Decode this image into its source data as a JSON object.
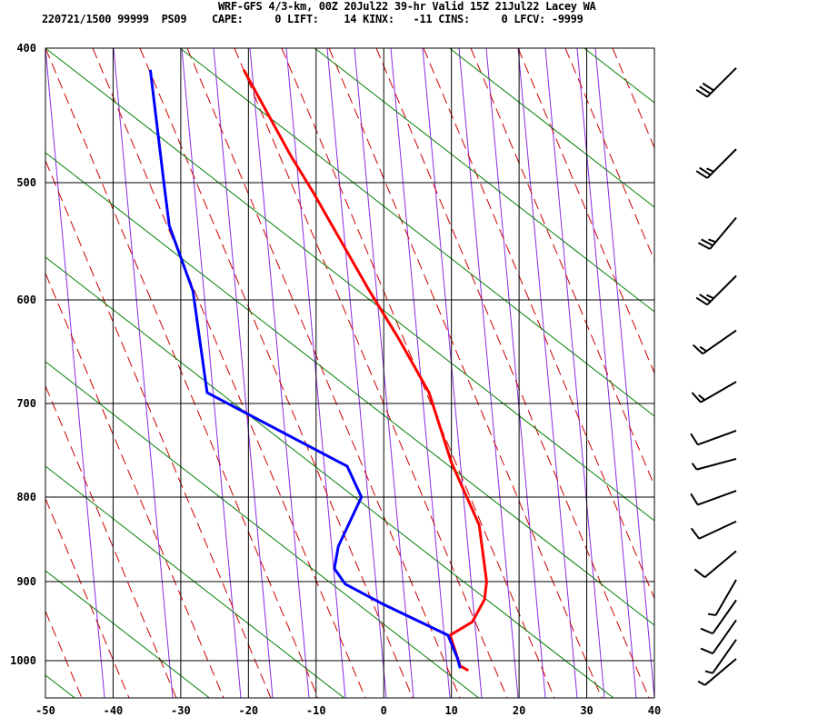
{
  "header": {
    "title": "WRF-GFS 4/3-km, 00Z 20Jul22 39-hr Valid 15Z 21Jul22 Lacey WA",
    "stats": "220721/1500 99999  PS09    CAPE:     0 LIFT:    14 KINX:   -11 CINS:     0 LFCV: -9999"
  },
  "chart_data": {
    "type": "line",
    "title": "WRF-GFS 4/3-km, 00Z 20Jul22 39-hr Valid 15Z 21Jul22 Lacey WA",
    "x_ticks": [
      -50,
      -40,
      -30,
      -20,
      -10,
      0,
      10,
      20,
      30,
      40
    ],
    "y_ticks": [
      400,
      500,
      600,
      700,
      800,
      900,
      1000
    ],
    "xlim": [
      -50,
      40
    ],
    "ylim": [
      1050,
      400
    ],
    "grid": true,
    "colors": {
      "temperature": "#ff0000",
      "dewpoint": "#0000ff",
      "isotherm": "#000000",
      "dry_adiabat": "#008000",
      "moist_adiabat": "#cc0000",
      "mixing_ratio": "#8a2be2"
    },
    "series": [
      {
        "key": "temperature",
        "points": [
          [
            415,
            -20.7
          ],
          [
            479,
            -13.7
          ],
          [
            508,
            -10.4
          ],
          [
            590,
            -2.3
          ],
          [
            635,
            2.1
          ],
          [
            689,
            6.7
          ],
          [
            762,
            10.0
          ],
          [
            832,
            14.1
          ],
          [
            900,
            15.2
          ],
          [
            922,
            14.9
          ],
          [
            950,
            13.1
          ],
          [
            967,
            9.8
          ],
          [
            1007,
            11.3
          ],
          [
            1013,
            12.5
          ]
        ]
      },
      {
        "key": "dewpoint",
        "points": [
          [
            415,
            -34.5
          ],
          [
            500,
            -32.5
          ],
          [
            535,
            -31.7
          ],
          [
            592,
            -28.2
          ],
          [
            689,
            -26.1
          ],
          [
            766,
            -5.4
          ],
          [
            800,
            -3.3
          ],
          [
            857,
            -6.7
          ],
          [
            884,
            -7.3
          ],
          [
            903,
            -5.7
          ],
          [
            927,
            -0.3
          ],
          [
            967,
            9.5
          ],
          [
            997,
            10.9
          ],
          [
            1010,
            11.3
          ]
        ]
      }
    ],
    "wind_barbs": [
      {
        "p": 415,
        "dir": 225,
        "kt": 30
      },
      {
        "p": 475,
        "dir": 225,
        "kt": 25
      },
      {
        "p": 530,
        "dir": 220,
        "kt": 25
      },
      {
        "p": 580,
        "dir": 225,
        "kt": 25
      },
      {
        "p": 630,
        "dir": 235,
        "kt": 15
      },
      {
        "p": 680,
        "dir": 240,
        "kt": 15
      },
      {
        "p": 730,
        "dir": 250,
        "kt": 10
      },
      {
        "p": 760,
        "dir": 255,
        "kt": 5
      },
      {
        "p": 795,
        "dir": 250,
        "kt": 10
      },
      {
        "p": 830,
        "dir": 245,
        "kt": 10
      },
      {
        "p": 865,
        "dir": 230,
        "kt": 10
      },
      {
        "p": 900,
        "dir": 210,
        "kt": 5
      },
      {
        "p": 925,
        "dir": 215,
        "kt": 10
      },
      {
        "p": 950,
        "dir": 215,
        "kt": 10
      },
      {
        "p": 975,
        "dir": 215,
        "kt": 5
      },
      {
        "p": 1000,
        "dir": 230,
        "kt": 5
      }
    ]
  }
}
